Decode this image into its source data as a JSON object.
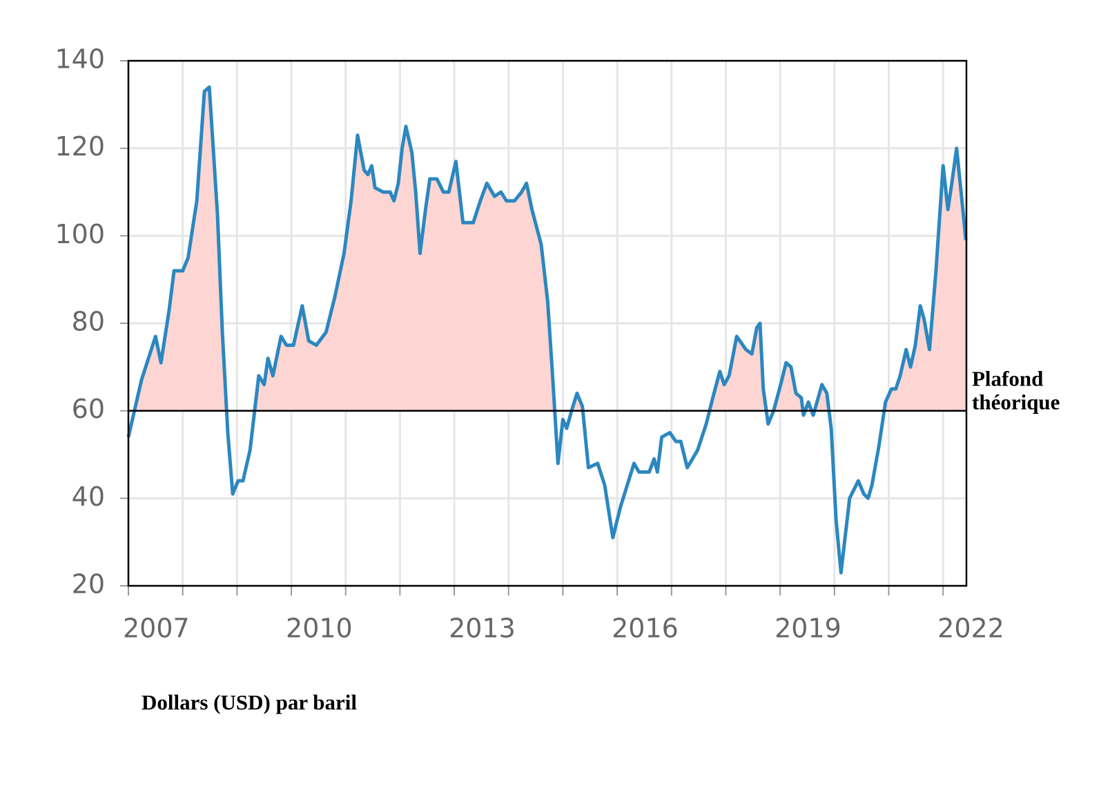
{
  "chart_data": {
    "type": "line",
    "x": [
      2007.0,
      2007.24,
      2007.5,
      2007.6,
      2007.75,
      2007.84,
      2008.0,
      2008.1,
      2008.26,
      2008.4,
      2008.49,
      2008.64,
      2008.73,
      2008.83,
      2008.92,
      2009.02,
      2009.11,
      2009.24,
      2009.4,
      2009.5,
      2009.57,
      2009.66,
      2009.81,
      2009.91,
      2010.04,
      2010.2,
      2010.32,
      2010.46,
      2010.64,
      2010.8,
      2010.97,
      2011.1,
      2011.22,
      2011.34,
      2011.41,
      2011.48,
      2011.54,
      2011.69,
      2011.82,
      2011.89,
      2011.97,
      2012.04,
      2012.11,
      2012.22,
      2012.29,
      2012.37,
      2012.47,
      2012.55,
      2012.68,
      2012.8,
      2012.9,
      2013.03,
      2013.16,
      2013.35,
      2013.48,
      2013.6,
      2013.74,
      2013.86,
      2013.96,
      2014.11,
      2014.24,
      2014.33,
      2014.43,
      2014.6,
      2014.72,
      2014.81,
      2014.91,
      2015.0,
      2015.07,
      2015.16,
      2015.26,
      2015.36,
      2015.47,
      2015.64,
      2015.77,
      2015.92,
      2016.06,
      2016.21,
      2016.31,
      2016.4,
      2016.59,
      2016.68,
      2016.74,
      2016.82,
      2016.97,
      2017.08,
      2017.17,
      2017.29,
      2017.48,
      2017.64,
      2017.76,
      2017.89,
      2017.97,
      2018.06,
      2018.2,
      2018.37,
      2018.48,
      2018.57,
      2018.63,
      2018.69,
      2018.78,
      2018.88,
      2019.01,
      2019.11,
      2019.2,
      2019.29,
      2019.39,
      2019.43,
      2019.52,
      2019.61,
      2019.77,
      2019.86,
      2019.94,
      2020.03,
      2020.12,
      2020.28,
      2020.44,
      2020.54,
      2020.62,
      2020.69,
      2020.82,
      2020.94,
      2021.05,
      2021.13,
      2021.21,
      2021.32,
      2021.4,
      2021.49,
      2021.58,
      2021.65,
      2021.75,
      2021.87,
      2022.0,
      2022.09,
      2022.16,
      2022.25,
      2022.34,
      2022.42
    ],
    "values": [
      54,
      67,
      77,
      71,
      83,
      92,
      92,
      95,
      108,
      133,
      134,
      105,
      78,
      55,
      41,
      44,
      44,
      51,
      68,
      66,
      72,
      68,
      77,
      75,
      75,
      84,
      76,
      75,
      78,
      86,
      96,
      108,
      123,
      115,
      114,
      116,
      111,
      110,
      110,
      108,
      112,
      120,
      125,
      119,
      110,
      96,
      106,
      113,
      113,
      110,
      110,
      117,
      103,
      103,
      108,
      112,
      109,
      110,
      108,
      108,
      110,
      112,
      106,
      98,
      85,
      68,
      48,
      58,
      56,
      60,
      64,
      61,
      47,
      48,
      43,
      31,
      38,
      44,
      48,
      46,
      46,
      49,
      46,
      54,
      55,
      53,
      53,
      47,
      51,
      57,
      63,
      69,
      66,
      68,
      77,
      74,
      73,
      79,
      80,
      65,
      57,
      60,
      66,
      71,
      70,
      64,
      63,
      59,
      62,
      59,
      66,
      64,
      56,
      35,
      23,
      40,
      44,
      41,
      40,
      43,
      52,
      62,
      65,
      65,
      68,
      74,
      70,
      75,
      84,
      81,
      74,
      92,
      116,
      106,
      112,
      120,
      109,
      99
    ],
    "color": "#2b87c0",
    "fill_color": "#fdd6d3",
    "xlim": [
      2007,
      2022.43
    ],
    "ylim": [
      20,
      140
    ],
    "yticks": [
      20,
      40,
      60,
      80,
      100,
      120,
      140
    ],
    "xticks": [
      2007,
      {
        "value": 2008,
        "label": null
      },
      {
        "value": 2009,
        "label": null
      },
      2010,
      {
        "value": 2011,
        "label": null
      },
      {
        "value": 2012,
        "label": null
      },
      2013,
      {
        "value": 2014,
        "label": null
      },
      {
        "value": 2015,
        "label": null
      },
      2016,
      {
        "value": 2017,
        "label": null
      },
      {
        "value": 2018,
        "label": null
      },
      2019,
      {
        "value": 2020,
        "label": null
      },
      {
        "value": 2021,
        "label": null
      },
      2022
    ],
    "grid": true,
    "reference_line": {
      "value": 60,
      "label_lines": [
        "Plafond",
        "théorique"
      ]
    },
    "ylabel": "Dollars (USD) par baril"
  }
}
